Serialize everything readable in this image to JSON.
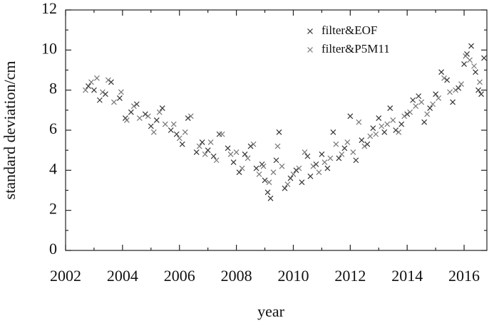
{
  "chart_data": {
    "type": "scatter",
    "x_label": "year",
    "y_label": "standard deviation/cm",
    "xlim": [
      2002,
      2016.8
    ],
    "ylim": [
      0,
      12
    ],
    "xticks": [
      2002,
      2004,
      2006,
      2008,
      2010,
      2012,
      2014,
      2016
    ],
    "yticks": [
      0,
      2,
      4,
      6,
      8,
      10,
      12
    ],
    "legend": "upper right",
    "series": [
      {
        "name": "filter&EOF",
        "color": "#333333",
        "x": [
          2002.8,
          2003.0,
          2003.2,
          2003.4,
          2003.6,
          2003.9,
          2004.1,
          2004.3,
          2004.5,
          2004.8,
          2005.0,
          2005.2,
          2005.4,
          2005.7,
          2005.9,
          2006.1,
          2006.3,
          2006.6,
          2006.8,
          2007.0,
          2007.2,
          2007.4,
          2007.7,
          2007.9,
          2008.1,
          2008.3,
          2008.5,
          2008.7,
          2008.9,
          2009.0,
          2009.1,
          2009.2,
          2009.4,
          2009.5,
          2009.7,
          2009.9,
          2010.1,
          2010.3,
          2010.5,
          2010.6,
          2010.8,
          2011.0,
          2011.2,
          2011.4,
          2011.6,
          2011.8,
          2012.0,
          2012.2,
          2012.4,
          2012.6,
          2012.8,
          2013.0,
          2013.2,
          2013.4,
          2013.6,
          2013.8,
          2014.0,
          2014.2,
          2014.4,
          2014.6,
          2014.8,
          2015.0,
          2015.2,
          2015.4,
          2015.6,
          2015.8,
          2016.0,
          2016.1,
          2016.25,
          2016.4,
          2016.5,
          2016.6,
          2016.7
        ],
        "values": [
          8.2,
          8.0,
          7.5,
          7.8,
          8.4,
          7.6,
          6.6,
          6.9,
          7.3,
          6.8,
          6.2,
          6.5,
          7.1,
          6.0,
          5.8,
          5.3,
          6.6,
          4.9,
          5.4,
          5.0,
          4.7,
          5.8,
          5.1,
          4.4,
          3.9,
          4.8,
          5.2,
          4.1,
          4.3,
          3.5,
          2.9,
          2.6,
          4.5,
          5.9,
          3.1,
          3.6,
          4.0,
          3.4,
          4.7,
          3.7,
          4.3,
          4.8,
          4.1,
          5.9,
          4.6,
          5.1,
          6.7,
          4.5,
          5.5,
          5.3,
          6.1,
          6.6,
          5.9,
          7.1,
          6.0,
          6.3,
          6.8,
          7.5,
          7.7,
          6.4,
          7.1,
          7.8,
          8.9,
          8.5,
          7.4,
          8.1,
          9.3,
          9.8,
          10.2,
          8.9,
          8.0,
          7.8,
          9.6
        ]
      },
      {
        "name": "filter&P5M11",
        "color": "#777777",
        "x": [
          2002.7,
          2002.9,
          2003.1,
          2003.3,
          2003.5,
          2003.7,
          2003.95,
          2004.15,
          2004.4,
          2004.6,
          2004.9,
          2005.1,
          2005.3,
          2005.5,
          2005.8,
          2006.0,
          2006.2,
          2006.4,
          2006.7,
          2006.9,
          2007.1,
          2007.3,
          2007.5,
          2007.8,
          2008.0,
          2008.2,
          2008.4,
          2008.6,
          2008.8,
          2008.95,
          2009.15,
          2009.3,
          2009.45,
          2009.6,
          2009.8,
          2010.0,
          2010.2,
          2010.4,
          2010.7,
          2010.9,
          2011.1,
          2011.3,
          2011.5,
          2011.7,
          2011.9,
          2012.1,
          2012.3,
          2012.5,
          2012.7,
          2012.9,
          2013.1,
          2013.3,
          2013.5,
          2013.7,
          2013.9,
          2014.1,
          2014.3,
          2014.5,
          2014.7,
          2014.9,
          2015.1,
          2015.3,
          2015.5,
          2015.7,
          2015.9,
          2016.05,
          2016.2,
          2016.35,
          2016.55
        ],
        "values": [
          8.0,
          8.4,
          8.6,
          7.9,
          8.5,
          7.4,
          7.9,
          6.5,
          7.2,
          6.6,
          6.7,
          5.9,
          6.9,
          6.3,
          6.3,
          5.6,
          5.9,
          6.7,
          5.2,
          4.8,
          5.4,
          4.5,
          5.8,
          4.8,
          4.9,
          4.1,
          4.6,
          5.3,
          3.8,
          4.2,
          3.4,
          3.9,
          5.2,
          4.2,
          3.3,
          3.8,
          4.1,
          4.9,
          4.2,
          3.9,
          4.4,
          4.6,
          5.3,
          4.8,
          5.4,
          4.9,
          6.4,
          5.2,
          5.7,
          5.8,
          6.2,
          6.3,
          6.5,
          5.9,
          6.7,
          6.9,
          7.2,
          7.4,
          6.8,
          7.3,
          7.6,
          8.6,
          7.9,
          8.0,
          8.3,
          9.7,
          9.5,
          9.2,
          8.4
        ]
      }
    ]
  }
}
